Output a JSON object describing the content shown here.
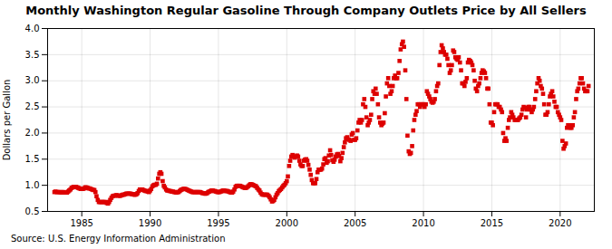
{
  "chart_data": {
    "type": "scatter",
    "title": "Monthly Washington Regular Gasoline Through Company Outlets Price by All Sellers",
    "ylabel": "Dollars per Gallon",
    "caption": "Source: U.S. Energy Information Administration",
    "color": "#dd0000",
    "marker": "square",
    "grid": true,
    "xlim": [
      1982.5,
      2022.5
    ],
    "ylim": [
      0.5,
      4.0
    ],
    "xticks": [
      1985,
      1990,
      1995,
      2000,
      2005,
      2010,
      2015,
      2020
    ],
    "yticks": [
      0.5,
      {
        "value": 1.0,
        "label": "1.0"
      },
      1.5,
      {
        "value": 2.0,
        "label": "2.0"
      },
      2.5,
      {
        "value": 3.0,
        "label": "3.0"
      },
      3.5,
      {
        "value": 4.0,
        "label": "4.0"
      }
    ],
    "x": [
      1983.0,
      1983.08,
      1983.17,
      1983.25,
      1983.33,
      1983.42,
      1983.5,
      1983.58,
      1983.67,
      1983.75,
      1983.83,
      1983.92,
      1984.0,
      1984.08,
      1984.17,
      1984.25,
      1984.33,
      1984.42,
      1984.5,
      1984.58,
      1984.67,
      1984.75,
      1984.83,
      1984.92,
      1985.0,
      1985.08,
      1985.17,
      1985.25,
      1985.33,
      1985.42,
      1985.5,
      1985.58,
      1985.67,
      1985.75,
      1985.83,
      1985.92,
      1986.0,
      1986.08,
      1986.17,
      1986.25,
      1986.33,
      1986.42,
      1986.5,
      1986.58,
      1986.67,
      1986.75,
      1986.83,
      1986.92,
      1987.0,
      1987.08,
      1987.17,
      1987.25,
      1987.33,
      1987.42,
      1987.5,
      1987.58,
      1987.67,
      1987.75,
      1987.83,
      1987.92,
      1988.0,
      1988.08,
      1988.17,
      1988.25,
      1988.33,
      1988.42,
      1988.5,
      1988.58,
      1988.67,
      1988.75,
      1988.83,
      1988.92,
      1989.0,
      1989.08,
      1989.17,
      1989.25,
      1989.33,
      1989.42,
      1989.5,
      1989.58,
      1989.67,
      1989.75,
      1989.83,
      1989.92,
      1990.0,
      1990.08,
      1990.17,
      1990.25,
      1990.33,
      1990.42,
      1990.5,
      1990.58,
      1990.67,
      1990.75,
      1990.83,
      1990.92,
      1991.0,
      1991.08,
      1991.17,
      1991.25,
      1991.33,
      1991.42,
      1991.5,
      1991.58,
      1991.67,
      1991.75,
      1991.83,
      1991.92,
      1992.0,
      1992.08,
      1992.17,
      1992.25,
      1992.33,
      1992.42,
      1992.5,
      1992.58,
      1992.67,
      1992.75,
      1992.83,
      1992.92,
      1993.0,
      1993.08,
      1993.17,
      1993.25,
      1993.33,
      1993.42,
      1993.5,
      1993.58,
      1993.67,
      1993.75,
      1993.83,
      1993.92,
      1994.0,
      1994.08,
      1994.17,
      1994.25,
      1994.33,
      1994.42,
      1994.5,
      1994.58,
      1994.67,
      1994.75,
      1994.83,
      1994.92,
      1995.0,
      1995.08,
      1995.17,
      1995.25,
      1995.33,
      1995.42,
      1995.5,
      1995.58,
      1995.67,
      1995.75,
      1995.83,
      1995.92,
      1996.0,
      1996.08,
      1996.17,
      1996.25,
      1996.33,
      1996.42,
      1996.5,
      1996.58,
      1996.67,
      1996.75,
      1996.83,
      1996.92,
      1997.0,
      1997.08,
      1997.17,
      1997.25,
      1997.33,
      1997.42,
      1997.5,
      1997.58,
      1997.67,
      1997.75,
      1997.83,
      1997.92,
      1998.0,
      1998.08,
      1998.17,
      1998.25,
      1998.33,
      1998.42,
      1998.5,
      1998.58,
      1998.67,
      1998.75,
      1998.83,
      1998.92,
      1999.0,
      1999.08,
      1999.17,
      1999.25,
      1999.33,
      1999.42,
      1999.5,
      1999.58,
      1999.67,
      1999.75,
      1999.83,
      1999.92,
      2000.0,
      2000.08,
      2000.17,
      2000.25,
      2000.33,
      2000.42,
      2000.5,
      2000.58,
      2000.67,
      2000.75,
      2000.83,
      2000.92,
      2001.0,
      2001.08,
      2001.17,
      2001.25,
      2001.33,
      2001.42,
      2001.5,
      2001.58,
      2001.67,
      2001.75,
      2001.83,
      2001.92,
      2002.0,
      2002.08,
      2002.17,
      2002.25,
      2002.33,
      2002.42,
      2002.5,
      2002.58,
      2002.67,
      2002.75,
      2002.83,
      2002.92,
      2003.0,
      2003.08,
      2003.17,
      2003.25,
      2003.33,
      2003.42,
      2003.5,
      2003.58,
      2003.67,
      2003.75,
      2003.83,
      2003.92,
      2004.0,
      2004.08,
      2004.17,
      2004.25,
      2004.33,
      2004.42,
      2004.5,
      2004.58,
      2004.67,
      2004.75,
      2004.83,
      2004.92,
      2005.0,
      2005.08,
      2005.17,
      2005.25,
      2005.33,
      2005.42,
      2005.5,
      2005.58,
      2005.67,
      2005.75,
      2005.83,
      2005.92,
      2006.0,
      2006.08,
      2006.17,
      2006.25,
      2006.33,
      2006.42,
      2006.5,
      2006.58,
      2006.67,
      2006.75,
      2006.83,
      2006.92,
      2007.0,
      2007.08,
      2007.17,
      2007.25,
      2007.33,
      2007.42,
      2007.5,
      2007.58,
      2007.67,
      2007.75,
      2007.83,
      2007.92,
      2008.0,
      2008.08,
      2008.17,
      2008.25,
      2008.33,
      2008.42,
      2008.5,
      2008.58,
      2008.67,
      2008.75,
      2008.83,
      2008.92,
      2009.0,
      2009.08,
      2009.17,
      2009.25,
      2009.33,
      2009.42,
      2009.5,
      2009.58,
      2009.67,
      2009.75,
      2009.83,
      2009.92,
      2010.0,
      2010.08,
      2010.17,
      2010.25,
      2010.33,
      2010.42,
      2010.5,
      2010.58,
      2010.67,
      2010.75,
      2010.83,
      2010.92,
      2011.0,
      2011.08,
      2011.17,
      2011.25,
      2011.33,
      2011.42,
      2011.5,
      2011.58,
      2011.67,
      2011.75,
      2011.83,
      2011.92,
      2012.0,
      2012.08,
      2012.17,
      2012.25,
      2012.33,
      2012.42,
      2012.5,
      2012.58,
      2012.67,
      2012.75,
      2012.83,
      2012.92,
      2013.0,
      2013.08,
      2013.17,
      2013.25,
      2013.33,
      2013.42,
      2013.5,
      2013.58,
      2013.67,
      2013.75,
      2013.83,
      2013.92,
      2014.0,
      2014.08,
      2014.17,
      2014.25,
      2014.33,
      2014.42,
      2014.5,
      2014.58,
      2014.67,
      2014.75,
      2014.83,
      2014.92,
      2015.0,
      2015.08,
      2015.17,
      2015.25,
      2015.33,
      2015.42,
      2015.5,
      2015.58,
      2015.67,
      2015.75,
      2015.83,
      2015.92,
      2016.0,
      2016.08,
      2016.17,
      2016.25,
      2016.33,
      2016.42,
      2016.5,
      2016.58,
      2016.67,
      2016.75,
      2016.83,
      2016.92,
      2017.0,
      2017.08,
      2017.17,
      2017.25,
      2017.33,
      2017.42,
      2017.5,
      2017.58,
      2017.67,
      2017.75,
      2017.83,
      2017.92,
      2018.0,
      2018.08,
      2018.17,
      2018.25,
      2018.33,
      2018.42,
      2018.5,
      2018.58,
      2018.67,
      2018.75,
      2018.83,
      2018.92,
      2019.0,
      2019.08,
      2019.17,
      2019.25,
      2019.33,
      2019.42,
      2019.5,
      2019.58,
      2019.67,
      2019.75,
      2019.83,
      2019.92,
      2020.0,
      2020.08,
      2020.17,
      2020.25,
      2020.33,
      2020.42,
      2020.5,
      2020.58,
      2020.67,
      2020.75,
      2020.83,
      2020.92,
      2021.0,
      2021.08,
      2021.17,
      2021.25,
      2021.33,
      2021.42,
      2021.5,
      2021.58,
      2021.67,
      2021.75,
      2021.83,
      2021.92,
      2022.0,
      2022.08
    ],
    "values": [
      0.87,
      0.88,
      0.87,
      0.87,
      0.87,
      0.87,
      0.86,
      0.87,
      0.87,
      0.86,
      0.86,
      0.86,
      0.88,
      0.9,
      0.92,
      0.95,
      0.96,
      0.97,
      0.97,
      0.97,
      0.96,
      0.95,
      0.94,
      0.93,
      0.93,
      0.93,
      0.94,
      0.96,
      0.96,
      0.95,
      0.94,
      0.94,
      0.93,
      0.92,
      0.91,
      0.91,
      0.87,
      0.79,
      0.72,
      0.68,
      0.68,
      0.68,
      0.68,
      0.68,
      0.68,
      0.68,
      0.66,
      0.65,
      0.68,
      0.72,
      0.76,
      0.79,
      0.8,
      0.8,
      0.81,
      0.81,
      0.8,
      0.8,
      0.8,
      0.81,
      0.82,
      0.82,
      0.83,
      0.84,
      0.84,
      0.84,
      0.84,
      0.84,
      0.83,
      0.83,
      0.82,
      0.82,
      0.83,
      0.85,
      0.89,
      0.92,
      0.92,
      0.92,
      0.91,
      0.9,
      0.89,
      0.89,
      0.88,
      0.87,
      0.9,
      0.93,
      0.98,
      1.0,
      1.01,
      1.01,
      1.03,
      1.13,
      1.22,
      1.25,
      1.22,
      1.08,
      0.99,
      0.96,
      0.92,
      0.9,
      0.9,
      0.89,
      0.89,
      0.88,
      0.88,
      0.87,
      0.87,
      0.86,
      0.87,
      0.87,
      0.89,
      0.91,
      0.92,
      0.93,
      0.93,
      0.93,
      0.92,
      0.91,
      0.9,
      0.89,
      0.88,
      0.87,
      0.87,
      0.87,
      0.87,
      0.87,
      0.87,
      0.87,
      0.87,
      0.86,
      0.85,
      0.85,
      0.84,
      0.84,
      0.85,
      0.87,
      0.88,
      0.89,
      0.9,
      0.9,
      0.89,
      0.89,
      0.88,
      0.87,
      0.87,
      0.87,
      0.88,
      0.89,
      0.9,
      0.9,
      0.89,
      0.89,
      0.89,
      0.88,
      0.87,
      0.86,
      0.86,
      0.88,
      0.92,
      0.97,
      0.99,
      0.99,
      0.99,
      0.99,
      0.98,
      0.97,
      0.96,
      0.95,
      0.95,
      0.96,
      0.98,
      1.0,
      1.02,
      1.02,
      1.01,
      1.0,
      0.99,
      0.98,
      0.95,
      0.92,
      0.9,
      0.86,
      0.83,
      0.82,
      0.82,
      0.82,
      0.82,
      0.82,
      0.8,
      0.77,
      0.73,
      0.69,
      0.7,
      0.72,
      0.77,
      0.82,
      0.85,
      0.89,
      0.91,
      0.93,
      0.96,
      0.99,
      1.01,
      1.04,
      1.08,
      1.17,
      1.37,
      1.47,
      1.55,
      1.58,
      1.55,
      1.53,
      1.55,
      1.57,
      1.55,
      1.47,
      1.4,
      1.37,
      1.37,
      1.47,
      1.49,
      1.5,
      1.47,
      1.39,
      1.3,
      1.2,
      1.1,
      1.04,
      1.04,
      1.04,
      1.12,
      1.25,
      1.3,
      1.3,
      1.3,
      1.32,
      1.4,
      1.5,
      1.52,
      1.43,
      1.46,
      1.57,
      1.67,
      1.58,
      1.48,
      1.45,
      1.49,
      1.55,
      1.59,
      1.6,
      1.56,
      1.46,
      1.52,
      1.62,
      1.73,
      1.82,
      1.9,
      1.92,
      1.88,
      1.87,
      1.85,
      1.97,
      2.0,
      1.87,
      1.87,
      1.9,
      2.05,
      2.2,
      2.25,
      2.2,
      2.25,
      2.55,
      2.65,
      2.5,
      2.3,
      2.15,
      2.2,
      2.25,
      2.35,
      2.65,
      2.8,
      2.75,
      2.85,
      2.75,
      2.55,
      2.3,
      2.2,
      2.15,
      2.18,
      2.2,
      2.38,
      2.7,
      2.95,
      3.05,
      2.9,
      2.75,
      2.8,
      2.9,
      3.05,
      3.1,
      3.05,
      3.05,
      3.15,
      3.38,
      3.6,
      3.7,
      3.75,
      3.65,
      3.2,
      2.65,
      1.95,
      1.65,
      1.6,
      1.62,
      1.75,
      2.05,
      2.25,
      2.35,
      2.42,
      2.55,
      2.55,
      2.5,
      2.55,
      2.55,
      2.55,
      2.5,
      2.55,
      2.8,
      2.75,
      2.7,
      2.65,
      2.6,
      2.58,
      2.6,
      2.65,
      2.8,
      2.9,
      2.95,
      3.3,
      3.55,
      3.68,
      3.62,
      3.55,
      3.5,
      3.5,
      3.42,
      3.3,
      3.15,
      3.2,
      3.3,
      3.58,
      3.55,
      3.45,
      3.42,
      3.4,
      3.45,
      3.35,
      3.2,
      2.95,
      2.95,
      2.9,
      2.98,
      3.05,
      3.35,
      3.4,
      3.38,
      3.35,
      3.3,
      3.2,
      3.0,
      2.85,
      2.8,
      2.9,
      2.95,
      3.05,
      3.15,
      3.2,
      3.18,
      3.15,
      3.05,
      2.85,
      2.85,
      2.55,
      2.2,
      2.2,
      2.15,
      2.4,
      2.55,
      2.55,
      2.55,
      2.5,
      2.5,
      2.45,
      2.4,
      2.0,
      1.85,
      1.9,
      1.85,
      2.1,
      2.25,
      2.3,
      2.4,
      2.35,
      2.3,
      2.25,
      2.25,
      2.25,
      2.25,
      2.28,
      2.3,
      2.35,
      2.45,
      2.5,
      2.48,
      2.3,
      2.45,
      2.5,
      2.5,
      2.45,
      2.4,
      2.45,
      2.5,
      2.65,
      2.8,
      2.95,
      3.05,
      3.0,
      2.9,
      2.85,
      2.75,
      2.55,
      2.35,
      2.35,
      2.4,
      2.55,
      2.7,
      2.75,
      2.8,
      2.7,
      2.6,
      2.5,
      2.5,
      2.4,
      2.35,
      2.3,
      2.25,
      1.85,
      1.7,
      1.75,
      1.8,
      2.1,
      2.15,
      2.15,
      2.1,
      2.1,
      2.15,
      2.3,
      2.4,
      2.65,
      2.8,
      2.85,
      2.95,
      3.05,
      3.05,
      2.95,
      2.85,
      2.8,
      2.8,
      2.8,
      2.9
    ]
  }
}
